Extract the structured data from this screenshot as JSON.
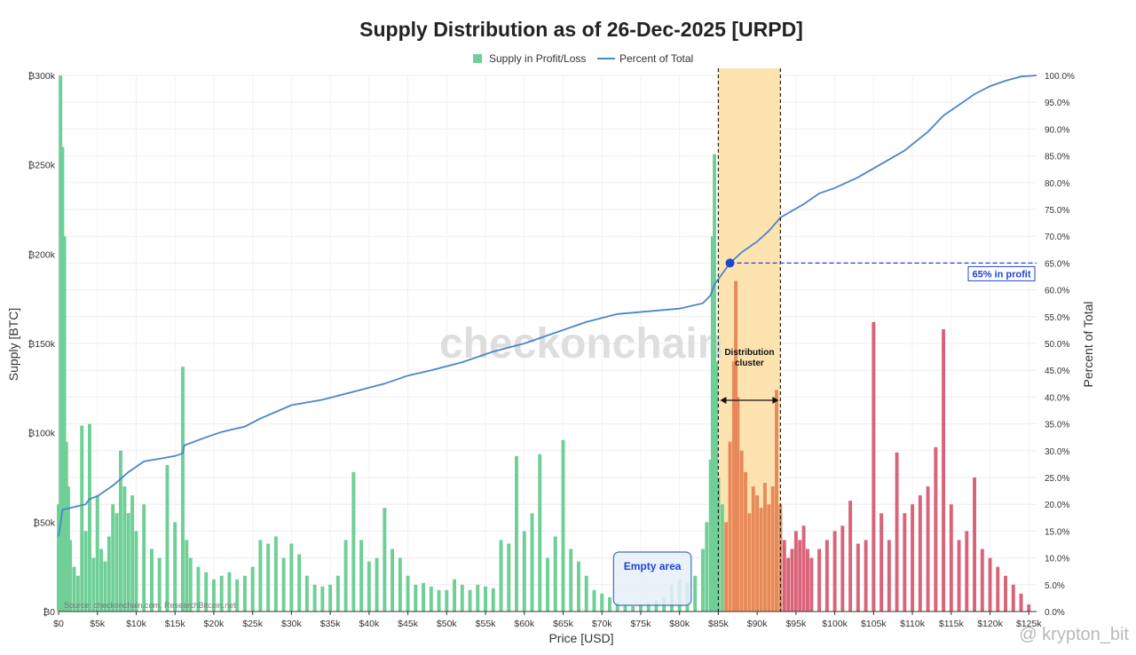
{
  "chart_data": {
    "type": "bar",
    "title": "Supply Distribution as of 26-Dec-2025 [URPD]",
    "xlabel": "Price [USD]",
    "ylabel_left": "Supply [BTC]",
    "ylabel_right": "Percent of Total",
    "xlim": [
      0,
      126000
    ],
    "ylim_left": [
      0,
      300000
    ],
    "ylim_right": [
      0,
      100
    ],
    "x_ticks": [
      "$0",
      "$5k",
      "$10k",
      "$15k",
      "$20k",
      "$25k",
      "$30k",
      "$35k",
      "$40k",
      "$45k",
      "$50k",
      "$55k",
      "$60k",
      "$65k",
      "$70k",
      "$75k",
      "$80k",
      "$85k",
      "$90k",
      "$95k",
      "$100k",
      "$105k",
      "$110k",
      "$115k",
      "$120k",
      "$125k"
    ],
    "y_left_ticks": [
      "₿0",
      "₿50k",
      "₿100k",
      "₿150k",
      "₿200k",
      "₿250k",
      "₿300k"
    ],
    "y_right_ticks": [
      "0.0%",
      "5.0%",
      "10.0%",
      "15.0%",
      "20.0%",
      "25.0%",
      "30.0%",
      "35.0%",
      "40.0%",
      "45.0%",
      "50.0%",
      "55.0%",
      "60.0%",
      "65.0%",
      "70.0%",
      "75.0%",
      "80.0%",
      "85.0%",
      "90.0%",
      "95.0%",
      "100.0%"
    ],
    "legend": {
      "placement": "top-center",
      "items": [
        {
          "label": "Supply in Profit/Loss",
          "color": "#6fcf97"
        },
        {
          "label": "Percent of Total",
          "color": "#4a86c8"
        }
      ]
    },
    "colors": {
      "profit": "#6fcf97",
      "transition": "#e8895a",
      "loss": "#d9647a",
      "line": "#4a86c8",
      "cluster_fill": "#fde3b0",
      "marker": "#1f45d6"
    },
    "series": [
      {
        "name": "Supply in Profit/Loss",
        "points": [
          [
            0,
            60000
          ],
          [
            250,
            300000
          ],
          [
            500,
            260000
          ],
          [
            750,
            210000
          ],
          [
            1000,
            95000
          ],
          [
            1250,
            70000
          ],
          [
            1500,
            40000
          ],
          [
            2000,
            25000
          ],
          [
            2500,
            20000
          ],
          [
            3000,
            104000
          ],
          [
            3500,
            45000
          ],
          [
            4000,
            105000
          ],
          [
            4500,
            30000
          ],
          [
            5000,
            65000
          ],
          [
            5500,
            35000
          ],
          [
            6000,
            28000
          ],
          [
            6500,
            42000
          ],
          [
            7000,
            60000
          ],
          [
            7500,
            55000
          ],
          [
            8000,
            90000
          ],
          [
            8500,
            70000
          ],
          [
            9000,
            55000
          ],
          [
            9500,
            65000
          ],
          [
            10000,
            45000
          ],
          [
            11000,
            60000
          ],
          [
            12000,
            35000
          ],
          [
            13000,
            30000
          ],
          [
            14000,
            82000
          ],
          [
            15000,
            50000
          ],
          [
            16000,
            137000
          ],
          [
            16500,
            40000
          ],
          [
            17000,
            30000
          ],
          [
            18000,
            25000
          ],
          [
            19000,
            22000
          ],
          [
            20000,
            18000
          ],
          [
            21000,
            20000
          ],
          [
            22000,
            22000
          ],
          [
            23000,
            18000
          ],
          [
            24000,
            20000
          ],
          [
            25000,
            25000
          ],
          [
            26000,
            40000
          ],
          [
            27000,
            38000
          ],
          [
            28000,
            42000
          ],
          [
            29000,
            30000
          ],
          [
            30000,
            38000
          ],
          [
            31000,
            32000
          ],
          [
            32000,
            20000
          ],
          [
            33000,
            15000
          ],
          [
            34000,
            14000
          ],
          [
            35000,
            15000
          ],
          [
            36000,
            20000
          ],
          [
            37000,
            40000
          ],
          [
            38000,
            78000
          ],
          [
            39000,
            40000
          ],
          [
            40000,
            28000
          ],
          [
            41000,
            30000
          ],
          [
            42000,
            58000
          ],
          [
            43000,
            35000
          ],
          [
            44000,
            30000
          ],
          [
            45000,
            20000
          ],
          [
            46000,
            15000
          ],
          [
            47000,
            16000
          ],
          [
            48000,
            14000
          ],
          [
            49000,
            12000
          ],
          [
            50000,
            12000
          ],
          [
            51000,
            18000
          ],
          [
            52000,
            15000
          ],
          [
            53000,
            12000
          ],
          [
            54000,
            15000
          ],
          [
            55000,
            14000
          ],
          [
            56000,
            13000
          ],
          [
            57000,
            40000
          ],
          [
            58000,
            38000
          ],
          [
            59000,
            87000
          ],
          [
            60000,
            45000
          ],
          [
            61000,
            55000
          ],
          [
            62000,
            88000
          ],
          [
            63000,
            30000
          ],
          [
            64000,
            42000
          ],
          [
            65000,
            96000
          ],
          [
            66000,
            35000
          ],
          [
            67000,
            28000
          ],
          [
            68000,
            20000
          ],
          [
            69000,
            12000
          ],
          [
            70000,
            10000
          ],
          [
            71000,
            8000
          ],
          [
            72000,
            5000
          ],
          [
            73000,
            4000
          ],
          [
            74000,
            3000
          ],
          [
            75000,
            4000
          ],
          [
            76000,
            5000
          ],
          [
            77000,
            6000
          ],
          [
            78000,
            8000
          ],
          [
            79000,
            15000
          ],
          [
            80000,
            18000
          ],
          [
            81000,
            16000
          ],
          [
            82000,
            20000
          ],
          [
            83000,
            35000
          ],
          [
            83500,
            50000
          ],
          [
            84000,
            85000
          ],
          [
            84250,
            210000
          ],
          [
            84500,
            256000
          ],
          [
            84750,
            140000
          ],
          [
            85000,
            75000
          ],
          [
            85500,
            60000
          ],
          [
            86000,
            50000
          ],
          [
            86500,
            95000
          ],
          [
            87000,
            140000
          ],
          [
            87250,
            185000
          ],
          [
            87500,
            120000
          ],
          [
            88000,
            90000
          ],
          [
            88500,
            78000
          ],
          [
            89000,
            55000
          ],
          [
            89500,
            70000
          ],
          [
            90000,
            65000
          ],
          [
            90500,
            58000
          ],
          [
            91000,
            72000
          ],
          [
            91500,
            60000
          ],
          [
            92000,
            70000
          ],
          [
            92500,
            124000
          ],
          [
            93000,
            60000
          ],
          [
            93500,
            40000
          ],
          [
            94000,
            30000
          ],
          [
            94500,
            35000
          ],
          [
            95000,
            45000
          ],
          [
            95500,
            40000
          ],
          [
            96000,
            48000
          ],
          [
            96500,
            35000
          ],
          [
            97000,
            30000
          ],
          [
            98000,
            35000
          ],
          [
            99000,
            40000
          ],
          [
            100000,
            45000
          ],
          [
            101000,
            48000
          ],
          [
            102000,
            62000
          ],
          [
            103000,
            38000
          ],
          [
            104000,
            40000
          ],
          [
            105000,
            162000
          ],
          [
            106000,
            55000
          ],
          [
            107000,
            40000
          ],
          [
            108000,
            89000
          ],
          [
            109000,
            55000
          ],
          [
            110000,
            60000
          ],
          [
            111000,
            65000
          ],
          [
            112000,
            70000
          ],
          [
            113000,
            92000
          ],
          [
            114000,
            158000
          ],
          [
            115000,
            60000
          ],
          [
            116000,
            40000
          ],
          [
            117000,
            45000
          ],
          [
            118000,
            75000
          ],
          [
            119000,
            35000
          ],
          [
            120000,
            30000
          ],
          [
            121000,
            25000
          ],
          [
            122000,
            20000
          ],
          [
            123000,
            15000
          ],
          [
            124000,
            10000
          ],
          [
            125000,
            4000
          ]
        ]
      },
      {
        "name": "Percent of Total",
        "points": [
          [
            0,
            14
          ],
          [
            500,
            19
          ],
          [
            2000,
            19.5
          ],
          [
            3500,
            20
          ],
          [
            4000,
            21
          ],
          [
            5000,
            21.5
          ],
          [
            7000,
            23.5
          ],
          [
            9000,
            26
          ],
          [
            11000,
            28
          ],
          [
            13000,
            28.5
          ],
          [
            15000,
            29
          ],
          [
            16000,
            29.5
          ],
          [
            16200,
            31
          ],
          [
            19000,
            32.5
          ],
          [
            21000,
            33.5
          ],
          [
            24000,
            34.5
          ],
          [
            26000,
            36
          ],
          [
            30000,
            38.5
          ],
          [
            34000,
            39.5
          ],
          [
            38000,
            41
          ],
          [
            42000,
            42.5
          ],
          [
            45000,
            44
          ],
          [
            48000,
            45
          ],
          [
            52000,
            46.5
          ],
          [
            56000,
            48.5
          ],
          [
            60000,
            50
          ],
          [
            64000,
            52
          ],
          [
            68000,
            54
          ],
          [
            72000,
            55.5
          ],
          [
            80000,
            56.5
          ],
          [
            83000,
            57.5
          ],
          [
            84000,
            59
          ],
          [
            84500,
            61
          ],
          [
            85500,
            63
          ],
          [
            86500,
            65
          ],
          [
            88000,
            67
          ],
          [
            90000,
            69
          ],
          [
            91500,
            71
          ],
          [
            93000,
            73.5
          ],
          [
            96000,
            76
          ],
          [
            98000,
            78
          ],
          [
            100000,
            79
          ],
          [
            103000,
            81
          ],
          [
            106000,
            83.5
          ],
          [
            109000,
            86
          ],
          [
            112000,
            89.5
          ],
          [
            114000,
            92.5
          ],
          [
            116000,
            94.5
          ],
          [
            118000,
            96.5
          ],
          [
            120000,
            98
          ],
          [
            122000,
            99
          ],
          [
            124000,
            99.8
          ],
          [
            126000,
            100
          ]
        ]
      }
    ],
    "annotations": {
      "watermark": "checkonchain",
      "source": "Source: checkonchain.com, ResearchBitcoin.net",
      "cluster_label_line1": "Distribution",
      "cluster_label_line2": "cluster",
      "cluster_range": [
        85000,
        93000
      ],
      "profit_point": [
        86500,
        65
      ],
      "profit_label": "65% in profit",
      "empty_area_label": "Empty area",
      "empty_area_range": [
        71500,
        81500
      ],
      "credit": "@ krypton_bit"
    }
  }
}
